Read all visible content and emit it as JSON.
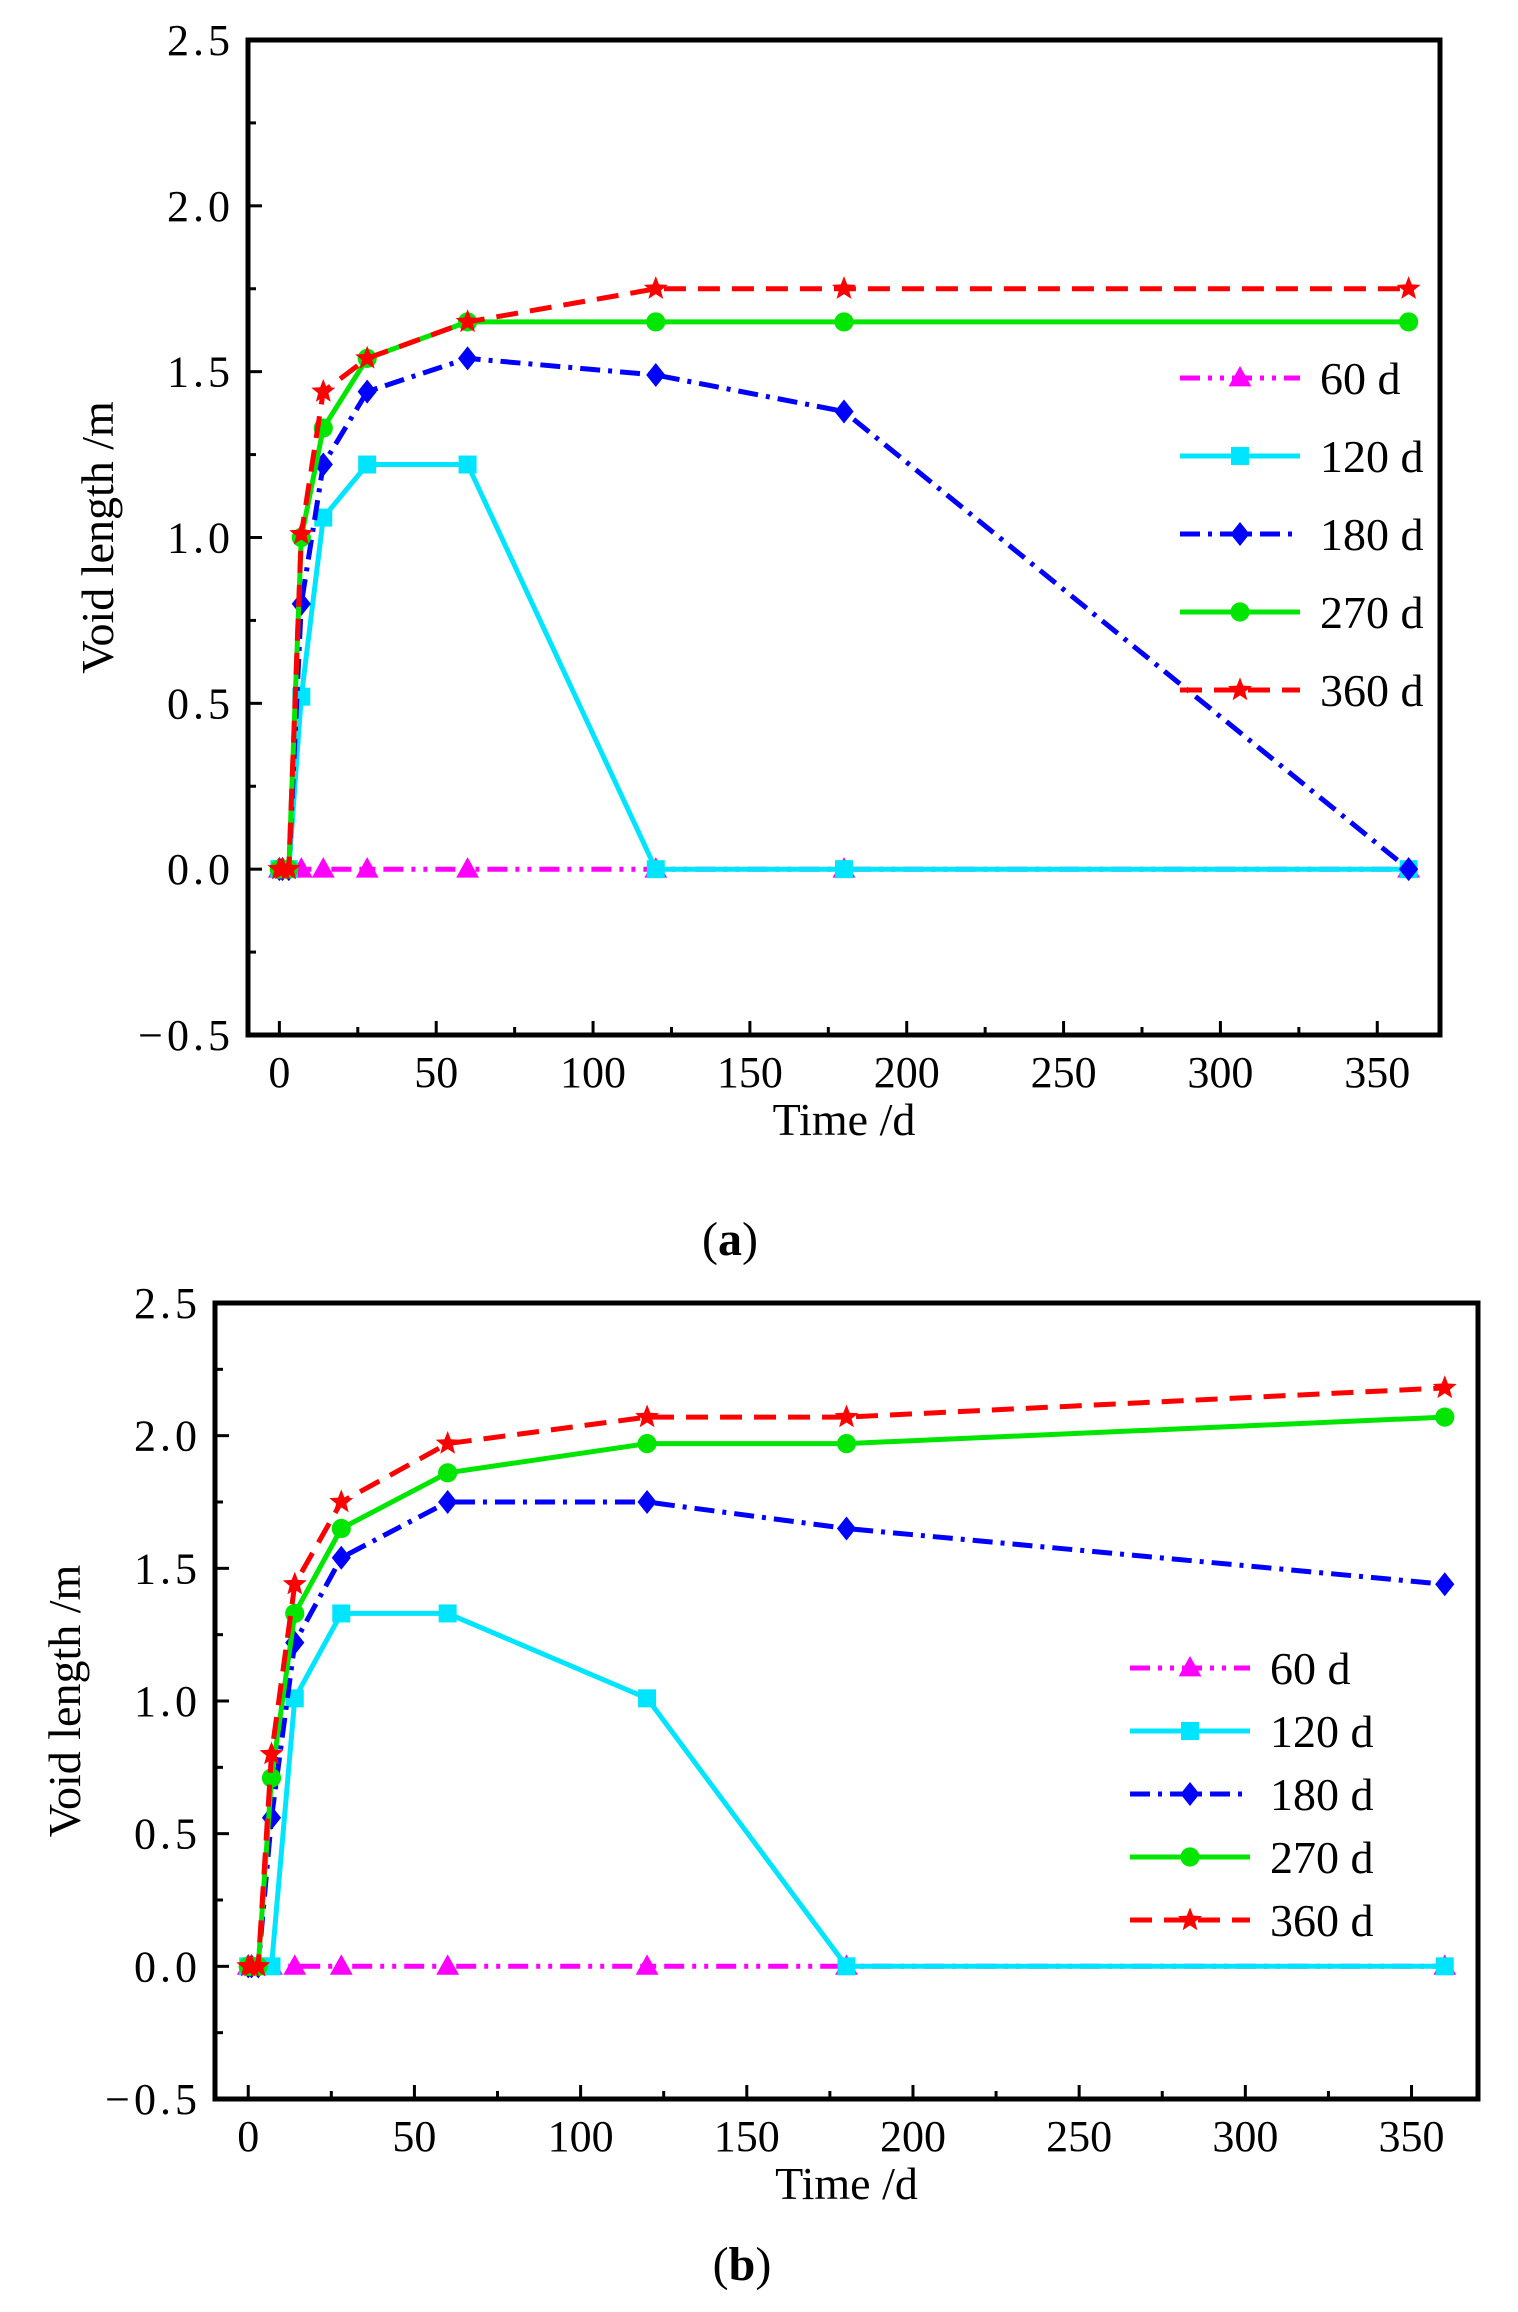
{
  "figure_caption_open": "(",
  "figure_caption_close": ")",
  "chart_data": [
    {
      "type": "line",
      "panel_label": "a",
      "title": "",
      "xlabel": "Time /d",
      "ylabel": "Void length /m",
      "xlim": [
        -10,
        370
      ],
      "ylim": [
        -0.5,
        2.5
      ],
      "xticks": [
        "0",
        "50",
        "100",
        "150",
        "200",
        "250",
        "300",
        "350"
      ],
      "xtick_values": [
        0,
        50,
        100,
        150,
        200,
        250,
        300,
        350
      ],
      "yticks": [
        "2.5",
        "2.0",
        "1.5",
        "1.0",
        "0.5",
        "0.0",
        "−0.5"
      ],
      "ytick_values": [
        2.5,
        2.0,
        1.5,
        1.0,
        0.5,
        0.0,
        -0.5
      ],
      "legend_position": "right",
      "series": [
        {
          "name": "60 d",
          "color": "#ff00ff",
          "marker": "triangle",
          "dash": "dashdotdot",
          "x": [
            0,
            1,
            3,
            7,
            14,
            28,
            60,
            120,
            180,
            360
          ],
          "values": [
            0,
            0,
            0,
            0,
            0,
            0,
            0,
            0,
            0,
            0
          ]
        },
        {
          "name": "120 d",
          "color": "#00e5ff",
          "marker": "square",
          "dash": "solid",
          "x": [
            0,
            1,
            3,
            7,
            14,
            28,
            60,
            120,
            180,
            360
          ],
          "values": [
            0,
            0,
            0,
            0.52,
            1.06,
            1.22,
            1.22,
            0,
            0,
            0
          ]
        },
        {
          "name": "180 d",
          "color": "#0000ff",
          "marker": "diamond",
          "dash": "dashdot",
          "x": [
            0,
            1,
            3,
            7,
            14,
            28,
            60,
            120,
            180,
            360
          ],
          "values": [
            0,
            0,
            0,
            0.8,
            1.22,
            1.44,
            1.54,
            1.49,
            1.38,
            0
          ]
        },
        {
          "name": "270 d",
          "color": "#00e600",
          "marker": "circle",
          "dash": "solid",
          "x": [
            0,
            1,
            3,
            7,
            14,
            28,
            60,
            120,
            180,
            360
          ],
          "values": [
            0,
            0,
            0,
            1.0,
            1.33,
            1.54,
            1.65,
            1.65,
            1.65,
            1.65
          ]
        },
        {
          "name": "360 d",
          "color": "#ff0000",
          "marker": "star",
          "dash": "dashed",
          "x": [
            0,
            1,
            3,
            7,
            14,
            28,
            60,
            120,
            180,
            360
          ],
          "values": [
            0,
            0,
            0,
            1.01,
            1.44,
            1.54,
            1.65,
            1.75,
            1.75,
            1.75
          ]
        }
      ]
    },
    {
      "type": "line",
      "panel_label": "b",
      "title": "",
      "xlabel": "Time /d",
      "ylabel": "Void length /m",
      "xlim": [
        -10,
        370
      ],
      "ylim": [
        -0.5,
        2.5
      ],
      "xticks": [
        "0",
        "50",
        "100",
        "150",
        "200",
        "250",
        "300",
        "350"
      ],
      "xtick_values": [
        0,
        50,
        100,
        150,
        200,
        250,
        300,
        350
      ],
      "yticks": [
        "2.5",
        "2.0",
        "1.5",
        "1.0",
        "0.5",
        "0.0",
        "−0.5"
      ],
      "ytick_values": [
        2.5,
        2.0,
        1.5,
        1.0,
        0.5,
        0.0,
        -0.5
      ],
      "legend_position": "right",
      "series": [
        {
          "name": "60 d",
          "color": "#ff00ff",
          "marker": "triangle",
          "dash": "dashdotdot",
          "x": [
            0,
            1,
            3,
            7,
            14,
            28,
            60,
            120,
            180,
            360
          ],
          "values": [
            0,
            0,
            0,
            0,
            0,
            0,
            0,
            0,
            0,
            0
          ]
        },
        {
          "name": "120 d",
          "color": "#00e5ff",
          "marker": "square",
          "dash": "solid",
          "x": [
            0,
            1,
            3,
            7,
            14,
            28,
            60,
            120,
            180,
            360
          ],
          "values": [
            0,
            0,
            0,
            0,
            1.01,
            1.33,
            1.33,
            1.01,
            0,
            0
          ]
        },
        {
          "name": "180 d",
          "color": "#0000ff",
          "marker": "diamond",
          "dash": "dashdot",
          "x": [
            0,
            1,
            3,
            7,
            14,
            28,
            60,
            120,
            180,
            360
          ],
          "values": [
            0,
            0,
            0,
            0.56,
            1.22,
            1.54,
            1.75,
            1.75,
            1.65,
            1.44
          ]
        },
        {
          "name": "270 d",
          "color": "#00e600",
          "marker": "circle",
          "dash": "solid",
          "x": [
            0,
            1,
            3,
            7,
            14,
            28,
            60,
            120,
            180,
            360
          ],
          "values": [
            0,
            0,
            0,
            0.71,
            1.33,
            1.65,
            1.86,
            1.97,
            1.97,
            2.07
          ]
        },
        {
          "name": "360 d",
          "color": "#ff0000",
          "marker": "star",
          "dash": "dashed",
          "x": [
            0,
            1,
            3,
            7,
            14,
            28,
            60,
            120,
            180,
            360
          ],
          "values": [
            0,
            0,
            0,
            0.8,
            1.44,
            1.75,
            1.97,
            2.07,
            2.07,
            2.18
          ]
        }
      ]
    }
  ]
}
